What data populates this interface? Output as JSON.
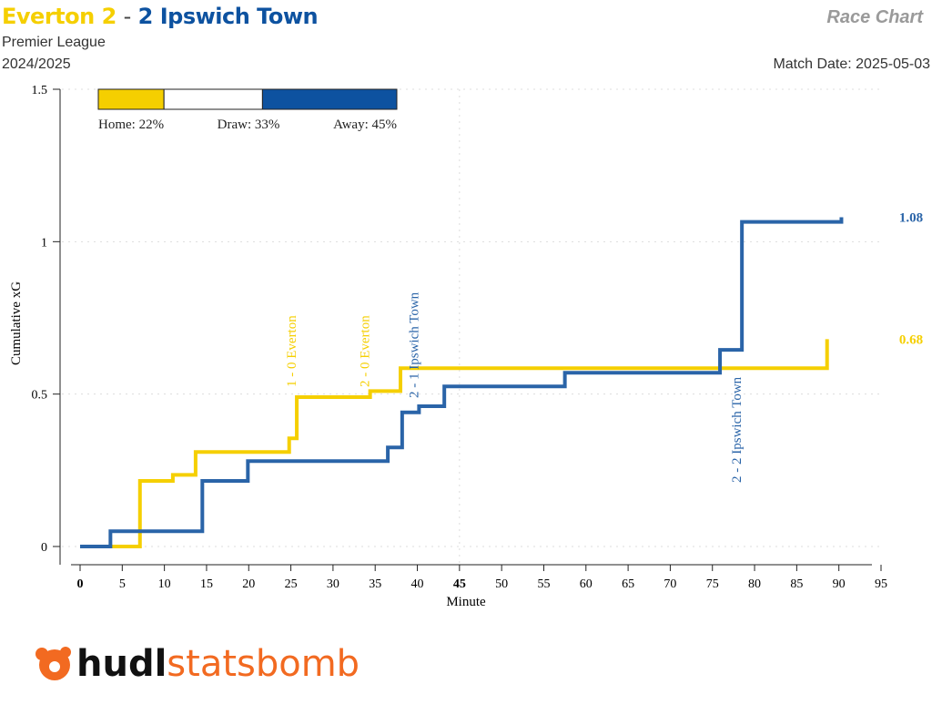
{
  "header": {
    "home_team": "Everton",
    "home_score": "2",
    "separator": "-",
    "away_score": "2",
    "away_team": "Ipswich Town",
    "competition": "Premier League",
    "season": "2024/2025",
    "chart_label": "Race Chart",
    "match_date": "Match Date: 2025-05-03"
  },
  "colors": {
    "home": "#f5cf00",
    "away": "#2a64a8",
    "away_title": "#0d52a0"
  },
  "probabilities": {
    "home": 22,
    "draw": 33,
    "away": 45,
    "home_label": "Home: 22%",
    "draw_label": "Draw: 33%",
    "away_label": "Away: 45%"
  },
  "logo": {
    "brand_a": "hudl",
    "brand_b": "statsbomb"
  },
  "chart_data": {
    "type": "line",
    "step": true,
    "xlabel": "Minute",
    "ylabel": "Cumulative xG",
    "xlim": [
      0,
      95
    ],
    "ylim": [
      0,
      1.5
    ],
    "xticks": [
      0,
      5,
      10,
      15,
      20,
      25,
      30,
      35,
      40,
      45,
      50,
      55,
      60,
      65,
      70,
      75,
      80,
      85,
      90,
      95
    ],
    "yticks": [
      0,
      0.5,
      1,
      1.5
    ],
    "ytick_labels": [
      "0",
      "0.5",
      "1",
      "1.5"
    ],
    "series": [
      {
        "name": "Everton",
        "final_label": "0.68",
        "x": [
          0,
          7.1,
          11.0,
          13.7,
          24.8,
          25.7,
          34.4,
          38.0,
          88.6,
          88.6
        ],
        "y": [
          0,
          0.215,
          0.235,
          0.31,
          0.355,
          0.49,
          0.51,
          0.585,
          0.68,
          0.68
        ]
      },
      {
        "name": "Ipswich Town",
        "final_label": "1.08",
        "x": [
          0,
          3.6,
          14.5,
          19.9,
          36.5,
          38.2,
          40.2,
          43.2,
          57.5,
          75.9,
          78.5,
          90.3,
          90.3
        ],
        "y": [
          0,
          0.05,
          0.215,
          0.28,
          0.325,
          0.44,
          0.46,
          0.525,
          0.57,
          0.645,
          1.065,
          1.08,
          1.08
        ]
      }
    ],
    "annotations": [
      {
        "text": "1 - 0 Everton",
        "minute": 25.7,
        "team": "home"
      },
      {
        "text": "2 - 0 Everton",
        "minute": 34.4,
        "team": "home"
      },
      {
        "text": "2 - 1 Ipswich Town",
        "minute": 40.2,
        "team": "away"
      },
      {
        "text": "2 - 2 Ipswich Town",
        "minute": 78.5,
        "team": "away"
      }
    ]
  }
}
